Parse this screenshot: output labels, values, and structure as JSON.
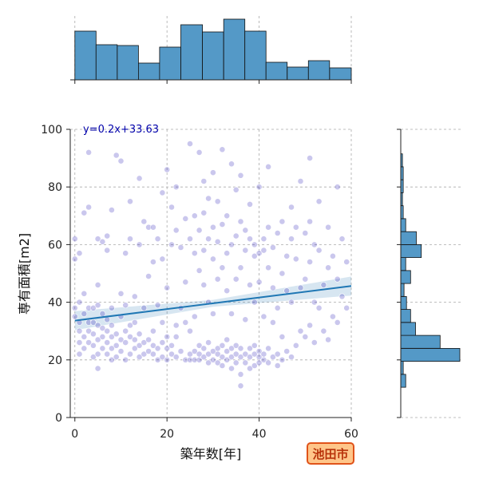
{
  "chart_data": {
    "type": "scatter",
    "title": "",
    "xlabel": "築年数[年]",
    "ylabel": "専有面積[m2]",
    "xlim": [
      -1,
      60
    ],
    "ylim": [
      0,
      100
    ],
    "xticks": [
      0,
      20,
      40,
      60
    ],
    "yticks": [
      0,
      20,
      40,
      60,
      80,
      100
    ],
    "grid": true,
    "regression": {
      "label": "y=0.2x+33.63",
      "slope": 0.2,
      "intercept": 33.63
    },
    "point_color": "#2a1fb8",
    "line_color": "#1f77b4",
    "hist_color": "#5499c7",
    "marginal_x": {
      "bin_edges": [
        0,
        4.6,
        9.2,
        13.8,
        18.4,
        23,
        27.7,
        32.3,
        36.9,
        41.5,
        46.1,
        50.7,
        55.3,
        60
      ],
      "counts": [
        61,
        44,
        43,
        21,
        41,
        69,
        60,
        76,
        61,
        22,
        16,
        24,
        15
      ]
    },
    "marginal_y": {
      "bin_edges": [
        10.5,
        15,
        19.5,
        24,
        28.5,
        33,
        37.5,
        42,
        46.5,
        51,
        55.5,
        60,
        64.5,
        69,
        73.5,
        78,
        82.5,
        87,
        91.5,
        96
      ],
      "counts": [
        6,
        3,
        72,
        48,
        18,
        12,
        7,
        4,
        12,
        6,
        25,
        19,
        6,
        3,
        2,
        3,
        3,
        2,
        0
      ]
    },
    "points": [
      [
        0,
        35
      ],
      [
        0,
        38
      ],
      [
        0,
        55
      ],
      [
        0,
        62
      ],
      [
        1,
        26
      ],
      [
        1,
        30
      ],
      [
        1,
        33
      ],
      [
        1,
        40
      ],
      [
        1,
        22
      ],
      [
        1,
        57
      ],
      [
        2,
        24
      ],
      [
        2,
        28
      ],
      [
        2,
        36
      ],
      [
        2,
        43
      ],
      [
        2,
        71
      ],
      [
        3,
        26
      ],
      [
        3,
        30
      ],
      [
        3,
        33
      ],
      [
        3,
        38
      ],
      [
        3,
        73
      ],
      [
        3,
        92
      ],
      [
        4,
        21
      ],
      [
        4,
        25
      ],
      [
        4,
        29
      ],
      [
        4,
        33
      ],
      [
        4,
        38
      ],
      [
        5,
        17
      ],
      [
        5,
        22
      ],
      [
        5,
        27
      ],
      [
        5,
        32
      ],
      [
        5,
        39
      ],
      [
        5,
        46
      ],
      [
        5,
        62
      ],
      [
        6,
        24
      ],
      [
        6,
        28
      ],
      [
        6,
        31
      ],
      [
        6,
        36
      ],
      [
        6,
        61
      ],
      [
        7,
        22
      ],
      [
        7,
        26
      ],
      [
        7,
        30
      ],
      [
        7,
        34
      ],
      [
        7,
        58
      ],
      [
        7,
        63
      ],
      [
        8,
        20
      ],
      [
        8,
        24
      ],
      [
        8,
        28
      ],
      [
        8,
        32
      ],
      [
        8,
        38
      ],
      [
        8,
        72
      ],
      [
        9,
        21
      ],
      [
        9,
        25
      ],
      [
        9,
        29
      ],
      [
        9,
        91
      ],
      [
        10,
        23
      ],
      [
        10,
        27
      ],
      [
        10,
        35
      ],
      [
        10,
        43
      ],
      [
        10,
        89
      ],
      [
        11,
        20
      ],
      [
        11,
        26
      ],
      [
        11,
        30
      ],
      [
        11,
        39
      ],
      [
        11,
        57
      ],
      [
        12,
        22
      ],
      [
        12,
        28
      ],
      [
        12,
        32
      ],
      [
        12,
        62
      ],
      [
        12,
        75
      ],
      [
        13,
        24
      ],
      [
        13,
        27
      ],
      [
        13,
        33
      ],
      [
        13,
        42
      ],
      [
        14,
        21
      ],
      [
        14,
        25
      ],
      [
        14,
        29
      ],
      [
        14,
        60
      ],
      [
        14,
        83
      ],
      [
        15,
        22
      ],
      [
        15,
        26
      ],
      [
        15,
        38
      ],
      [
        15,
        68
      ],
      [
        16,
        23
      ],
      [
        16,
        27
      ],
      [
        16,
        66
      ],
      [
        16,
        49
      ],
      [
        17,
        22
      ],
      [
        17,
        25
      ],
      [
        17,
        30
      ],
      [
        17,
        54
      ],
      [
        17,
        66
      ],
      [
        18,
        20
      ],
      [
        18,
        24
      ],
      [
        18,
        39
      ],
      [
        18,
        62
      ],
      [
        19,
        21
      ],
      [
        19,
        26
      ],
      [
        19,
        33
      ],
      [
        19,
        55
      ],
      [
        19,
        78
      ],
      [
        20,
        20
      ],
      [
        20,
        24
      ],
      [
        20,
        28
      ],
      [
        20,
        45
      ],
      [
        20,
        86
      ],
      [
        21,
        22
      ],
      [
        21,
        25
      ],
      [
        21,
        60
      ],
      [
        21,
        73
      ],
      [
        22,
        21
      ],
      [
        22,
        28
      ],
      [
        22,
        32
      ],
      [
        22,
        65
      ],
      [
        22,
        80
      ],
      [
        23,
        23
      ],
      [
        23,
        38
      ],
      [
        23,
        59
      ],
      [
        24,
        20
      ],
      [
        24,
        33
      ],
      [
        24,
        47
      ],
      [
        24,
        69
      ],
      [
        25,
        20
      ],
      [
        25,
        22
      ],
      [
        25,
        30
      ],
      [
        25,
        62
      ],
      [
        25,
        95
      ],
      [
        26,
        20
      ],
      [
        26,
        23
      ],
      [
        26,
        35
      ],
      [
        26,
        57
      ],
      [
        26,
        70
      ],
      [
        27,
        20
      ],
      [
        27,
        22
      ],
      [
        27,
        25
      ],
      [
        27,
        51
      ],
      [
        27,
        65
      ],
      [
        27,
        92
      ],
      [
        28,
        21
      ],
      [
        28,
        24
      ],
      [
        28,
        46
      ],
      [
        28,
        58
      ],
      [
        28,
        71
      ],
      [
        28,
        82
      ],
      [
        29,
        19
      ],
      [
        29,
        22
      ],
      [
        29,
        26
      ],
      [
        29,
        40
      ],
      [
        29,
        62
      ],
      [
        29,
        76
      ],
      [
        30,
        20
      ],
      [
        30,
        23
      ],
      [
        30,
        36
      ],
      [
        30,
        55
      ],
      [
        30,
        66
      ],
      [
        30,
        85
      ],
      [
        31,
        19
      ],
      [
        31,
        22
      ],
      [
        31,
        24
      ],
      [
        31,
        48
      ],
      [
        31,
        61
      ],
      [
        31,
        75
      ],
      [
        32,
        18
      ],
      [
        32,
        21
      ],
      [
        32,
        25
      ],
      [
        32,
        52
      ],
      [
        32,
        67
      ],
      [
        32,
        93
      ],
      [
        33,
        20
      ],
      [
        33,
        23
      ],
      [
        33,
        27
      ],
      [
        33,
        44
      ],
      [
        33,
        57
      ],
      [
        33,
        70
      ],
      [
        34,
        17
      ],
      [
        34,
        21
      ],
      [
        34,
        24
      ],
      [
        34,
        36
      ],
      [
        34,
        60
      ],
      [
        34,
        88
      ],
      [
        35,
        19
      ],
      [
        35,
        22
      ],
      [
        35,
        25
      ],
      [
        35,
        48
      ],
      [
        35,
        63
      ],
      [
        35,
        79
      ],
      [
        36,
        11
      ],
      [
        36,
        15
      ],
      [
        36,
        21
      ],
      [
        36,
        24
      ],
      [
        36,
        52
      ],
      [
        36,
        68
      ],
      [
        36,
        84
      ],
      [
        37,
        19
      ],
      [
        37,
        22
      ],
      [
        37,
        34
      ],
      [
        37,
        58
      ],
      [
        37,
        65
      ],
      [
        38,
        17
      ],
      [
        38,
        21
      ],
      [
        38,
        24
      ],
      [
        38,
        46
      ],
      [
        38,
        62
      ],
      [
        38,
        74
      ],
      [
        39,
        18
      ],
      [
        39,
        22
      ],
      [
        39,
        25
      ],
      [
        39,
        40
      ],
      [
        39,
        56
      ],
      [
        39,
        60
      ],
      [
        40,
        19
      ],
      [
        40,
        21
      ],
      [
        40,
        23
      ],
      [
        40,
        47
      ],
      [
        40,
        57
      ],
      [
        40,
        80
      ],
      [
        41,
        20
      ],
      [
        41,
        22
      ],
      [
        41,
        35
      ],
      [
        41,
        58
      ],
      [
        41,
        62
      ],
      [
        42,
        19
      ],
      [
        42,
        24
      ],
      [
        42,
        52
      ],
      [
        42,
        66
      ],
      [
        42,
        87
      ],
      [
        43,
        21
      ],
      [
        43,
        33
      ],
      [
        43,
        45
      ],
      [
        43,
        59
      ],
      [
        44,
        18
      ],
      [
        44,
        22
      ],
      [
        44,
        38
      ],
      [
        44,
        64
      ],
      [
        45,
        20
      ],
      [
        45,
        28
      ],
      [
        45,
        50
      ],
      [
        45,
        68
      ],
      [
        46,
        23
      ],
      [
        46,
        44
      ],
      [
        46,
        56
      ],
      [
        47,
        21
      ],
      [
        47,
        40
      ],
      [
        47,
        62
      ],
      [
        47,
        73
      ],
      [
        48,
        25
      ],
      [
        48,
        55
      ],
      [
        48,
        66
      ],
      [
        49,
        30
      ],
      [
        49,
        45
      ],
      [
        49,
        82
      ],
      [
        50,
        28
      ],
      [
        50,
        48
      ],
      [
        50,
        64
      ],
      [
        51,
        32
      ],
      [
        51,
        54
      ],
      [
        51,
        68
      ],
      [
        51,
        90
      ],
      [
        52,
        26
      ],
      [
        52,
        40
      ],
      [
        52,
        60
      ],
      [
        53,
        38
      ],
      [
        53,
        58
      ],
      [
        53,
        75
      ],
      [
        54,
        30
      ],
      [
        54,
        46
      ],
      [
        55,
        27
      ],
      [
        55,
        52
      ],
      [
        55,
        66
      ],
      [
        56,
        35
      ],
      [
        56,
        56
      ],
      [
        57,
        33
      ],
      [
        57,
        48
      ],
      [
        57,
        80
      ],
      [
        58,
        42
      ],
      [
        58,
        62
      ],
      [
        59,
        38
      ],
      [
        59,
        54
      ]
    ]
  }
}
